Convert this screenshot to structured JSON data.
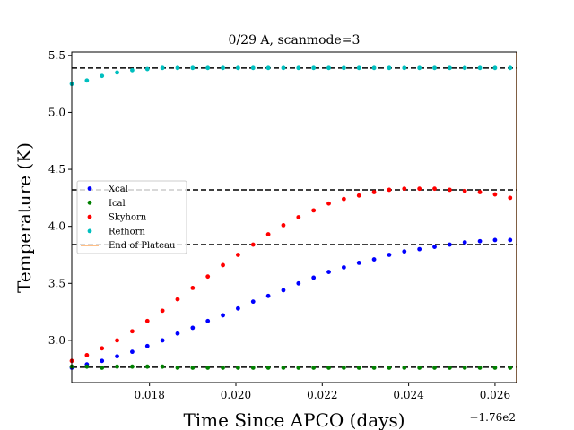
{
  "chart_data": {
    "type": "scatter",
    "title": "0/29 A, scanmode=3",
    "xlabel": "Time Since APCO (days)",
    "ylabel": "Temperature (K)",
    "x_offset_label": "+1.76e2",
    "xlim": [
      176.0162,
      176.0265
    ],
    "ylim": [
      2.63,
      5.53
    ],
    "x_ticks": [
      176.018,
      176.02,
      176.022,
      176.024,
      176.026
    ],
    "x_tick_labels": [
      "0.018",
      "0.020",
      "0.022",
      "0.024",
      "0.026"
    ],
    "y_ticks": [
      3.0,
      3.5,
      4.0,
      4.5,
      5.0,
      5.5
    ],
    "y_tick_labels": [
      "3.0",
      "3.5",
      "4.0",
      "4.5",
      "5.0",
      "5.5"
    ],
    "x": [
      176.0162,
      176.01655,
      176.0169,
      176.01725,
      176.0176,
      176.01795,
      176.0183,
      176.01865,
      176.019,
      176.01935,
      176.0197,
      176.02005,
      176.0204,
      176.02075,
      176.0211,
      176.02145,
      176.0218,
      176.02215,
      176.0225,
      176.02285,
      176.0232,
      176.02355,
      176.0239,
      176.02425,
      176.0246,
      176.02495,
      176.0253,
      176.02565,
      176.026,
      176.02635
    ],
    "series": [
      {
        "name": "Xcal",
        "color": "#0000ff",
        "values": [
          2.76,
          2.79,
          2.82,
          2.86,
          2.9,
          2.95,
          3.0,
          3.06,
          3.11,
          3.17,
          3.22,
          3.28,
          3.34,
          3.39,
          3.44,
          3.5,
          3.55,
          3.6,
          3.64,
          3.68,
          3.71,
          3.75,
          3.78,
          3.8,
          3.82,
          3.84,
          3.86,
          3.87,
          3.88,
          3.88
        ]
      },
      {
        "name": "Ical",
        "color": "#008000",
        "values": [
          2.77,
          2.77,
          2.76,
          2.77,
          2.77,
          2.77,
          2.77,
          2.76,
          2.76,
          2.76,
          2.76,
          2.76,
          2.76,
          2.76,
          2.76,
          2.76,
          2.76,
          2.76,
          2.76,
          2.76,
          2.76,
          2.76,
          2.76,
          2.76,
          2.76,
          2.76,
          2.76,
          2.76,
          2.76,
          2.76
        ]
      },
      {
        "name": "Skyhorn",
        "color": "#ff0000",
        "values": [
          2.82,
          2.87,
          2.93,
          3.0,
          3.08,
          3.17,
          3.26,
          3.36,
          3.46,
          3.56,
          3.66,
          3.75,
          3.84,
          3.93,
          4.01,
          4.08,
          4.14,
          4.2,
          4.24,
          4.27,
          4.3,
          4.32,
          4.33,
          4.33,
          4.33,
          4.32,
          4.31,
          4.3,
          4.28,
          4.25
        ]
      },
      {
        "name": "Refhorn",
        "color": "#00bfbf",
        "values": [
          5.25,
          5.28,
          5.32,
          5.35,
          5.37,
          5.38,
          5.39,
          5.39,
          5.39,
          5.39,
          5.39,
          5.39,
          5.39,
          5.39,
          5.39,
          5.39,
          5.39,
          5.39,
          5.39,
          5.39,
          5.39,
          5.39,
          5.39,
          5.39,
          5.39,
          5.39,
          5.39,
          5.39,
          5.39,
          5.39
        ]
      }
    ],
    "reference_lines_y": [
      5.39,
      4.32,
      3.84,
      2.765
    ],
    "vertical_line": {
      "name": "End of Plateau",
      "x": 176.0265,
      "color": "#ff7f0e"
    },
    "legend": {
      "placement": "center-left",
      "entries": [
        "Xcal",
        "Ical",
        "Skyhorn",
        "Refhorn",
        "End of Plateau"
      ]
    },
    "grid": false
  }
}
